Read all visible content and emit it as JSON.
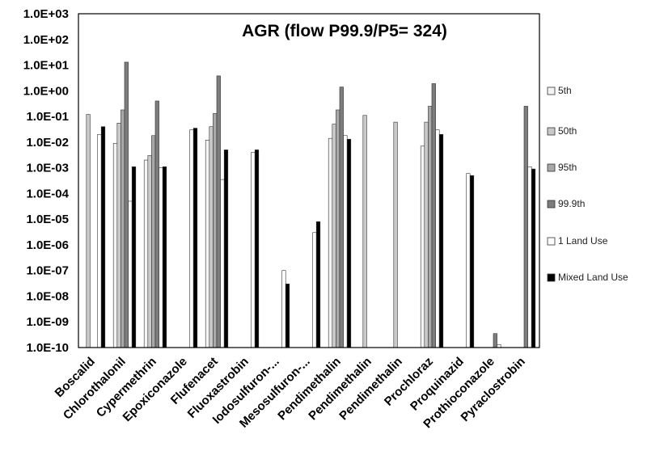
{
  "chart_data": {
    "type": "bar",
    "title": "AGR (flow P99.9/P5= 324)",
    "yscale": "log",
    "ylim": [
      1e-10,
      1000
    ],
    "yticks": [
      "1.0E+03",
      "1.0E+02",
      "1.0E+01",
      "1.0E+00",
      "1.0E-01",
      "1.0E-02",
      "1.0E-03",
      "1.0E-04",
      "1.0E-05",
      "1.0E-06",
      "1.0E-07",
      "1.0E-08",
      "1.0E-09",
      "1.0E-10"
    ],
    "categories": [
      "Boscalid",
      "Chlorothalonil",
      "Cypermethrin",
      "Epoxiconazole",
      "Flufenacet",
      "Fluoxastrobin",
      "Iodosulfuron-...",
      "Mesosulfuron-...",
      "Pendimethalin",
      "Pendimethalin",
      "Pendimethalin",
      "Prochloraz",
      "Proquinazid",
      "Prothioconazole",
      "Pyraclostrobin"
    ],
    "legend_position": "right",
    "grid": false,
    "series": [
      {
        "name": "5th",
        "color": "#f4f4f4",
        "values": [
          null,
          0.009,
          0.002,
          null,
          0.012,
          null,
          null,
          null,
          0.014,
          null,
          null,
          0.007,
          null,
          null,
          null
        ]
      },
      {
        "name": "50th",
        "color": "#c9c9c9",
        "values": [
          0.12,
          0.055,
          0.003,
          null,
          0.04,
          null,
          null,
          null,
          0.05,
          0.11,
          0.06,
          0.06,
          null,
          null,
          null
        ]
      },
      {
        "name": "95th",
        "color": "#a8a8a8",
        "values": [
          null,
          0.18,
          0.018,
          null,
          0.13,
          null,
          null,
          null,
          0.18,
          null,
          null,
          0.25,
          null,
          null,
          null
        ]
      },
      {
        "name": "99.9th",
        "color": "#7d7d7d",
        "values": [
          null,
          13,
          0.4,
          null,
          3.8,
          null,
          null,
          null,
          1.4,
          null,
          null,
          1.9,
          null,
          3.5e-10,
          0.25
        ]
      },
      {
        "name": "1 Land Use",
        "color": "#ffffff",
        "values": [
          0.02,
          5e-05,
          0.001,
          0.03,
          0.00035,
          0.004,
          1e-07,
          3e-06,
          0.018,
          null,
          null,
          0.03,
          0.0006,
          1.3e-10,
          0.0011
        ]
      },
      {
        "name": "Mixed Land Use",
        "color": "#000000",
        "values": [
          0.04,
          0.0011,
          0.0011,
          0.035,
          0.005,
          0.005,
          3e-08,
          8e-06,
          0.013,
          null,
          null,
          0.02,
          0.0005,
          null,
          0.0009
        ]
      }
    ]
  }
}
